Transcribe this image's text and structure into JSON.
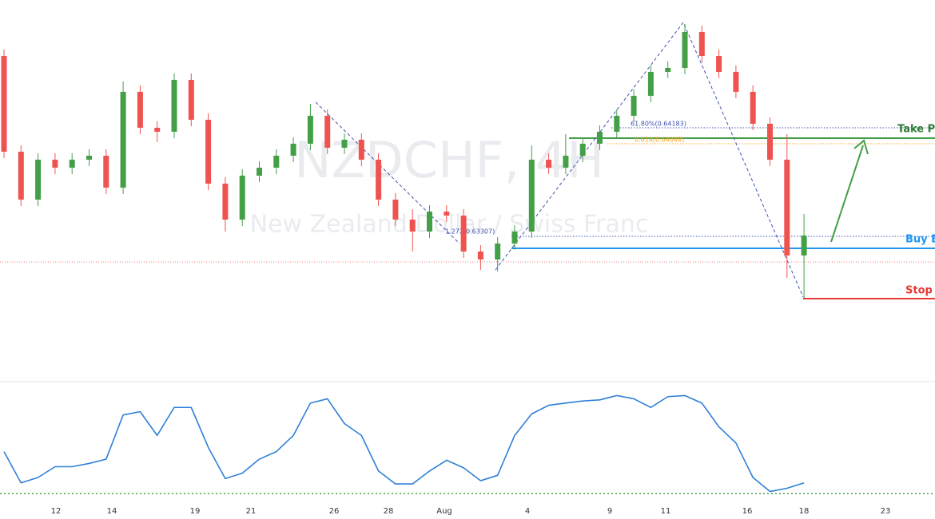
{
  "chart_data": [
    {
      "type": "candlestick",
      "watermark": "NZDCHF, 4H",
      "watermark_subtitle": "New Zealand Dollar / Swiss Franc",
      "up_color": "#43a047",
      "down_color": "#ef5350",
      "ylim": [
        0.6227,
        0.6509
      ],
      "open": [
        0.6467,
        0.6395,
        0.6359,
        0.6389,
        0.6383,
        0.6389,
        0.6392,
        0.6368,
        0.644,
        0.6413,
        0.641,
        0.6449,
        0.6419,
        0.6371,
        0.6344,
        0.6377,
        0.6383,
        0.6392,
        0.6401,
        0.6422,
        0.6398,
        0.6404,
        0.6389,
        0.6359,
        0.6344,
        0.6335,
        0.635,
        0.6347,
        0.632,
        0.6314,
        0.6326,
        0.6335,
        0.6389,
        0.6383,
        0.6392,
        0.6401,
        0.641,
        0.6422,
        0.6437,
        0.6455,
        0.6458,
        0.6485,
        0.6467,
        0.6455,
        0.644,
        0.6416,
        0.6389,
        0.6317
      ],
      "high": [
        0.64718,
        0.63998,
        0.63938,
        0.63938,
        0.63938,
        0.63968,
        0.63968,
        0.64478,
        0.64448,
        0.64178,
        0.64538,
        0.64538,
        0.64238,
        0.63758,
        0.63818,
        0.63878,
        0.63968,
        0.64058,
        0.6431,
        0.64268,
        0.64088,
        0.64088,
        0.63938,
        0.63638,
        0.63518,
        0.63548,
        0.63548,
        0.63518,
        0.63248,
        0.63308,
        0.63398,
        0.63998,
        0.63938,
        0.64082,
        0.64058,
        0.64148,
        0.64268,
        0.64418,
        0.64598,
        0.64628,
        0.6491,
        0.64898,
        0.64718,
        0.64598,
        0.64448,
        0.64208,
        0.64082,
        0.63482
      ],
      "low": [
        0.63902,
        0.63542,
        0.63542,
        0.63782,
        0.63782,
        0.63842,
        0.63632,
        0.63632,
        0.64082,
        0.64022,
        0.64052,
        0.64142,
        0.63662,
        0.6335,
        0.63392,
        0.63722,
        0.63782,
        0.63872,
        0.63962,
        0.63932,
        0.63932,
        0.63842,
        0.63542,
        0.63392,
        0.632,
        0.63302,
        0.63422,
        0.63152,
        0.63062,
        0.6305,
        0.63212,
        0.63302,
        0.63782,
        0.63782,
        0.63872,
        0.63962,
        0.64052,
        0.64172,
        0.64322,
        0.64502,
        0.64532,
        0.64622,
        0.64502,
        0.64352,
        0.64112,
        0.63842,
        0.63002,
        0.62852
      ],
      "close": [
        0.6395,
        0.6359,
        0.6389,
        0.6383,
        0.6389,
        0.6392,
        0.6368,
        0.644,
        0.6413,
        0.641,
        0.6449,
        0.6419,
        0.6371,
        0.6344,
        0.6377,
        0.6383,
        0.6392,
        0.6401,
        0.6422,
        0.6398,
        0.6404,
        0.6389,
        0.6359,
        0.6344,
        0.6335,
        0.635,
        0.6347,
        0.632,
        0.6314,
        0.6326,
        0.6335,
        0.6389,
        0.6383,
        0.6392,
        0.6401,
        0.641,
        0.6422,
        0.6437,
        0.6455,
        0.6458,
        0.6485,
        0.6467,
        0.6455,
        0.644,
        0.6416,
        0.6389,
        0.6317,
        0.6332
      ],
      "time_labels": [
        "12",
        "14",
        "19",
        "21",
        "26",
        "28",
        "Aug",
        "4",
        "9",
        "11",
        "16",
        "18",
        "23"
      ],
      "annotations": {
        "take_profit": "Take Pr",
        "buy_entry": "Buy E",
        "stop_loss": "Stop L",
        "fib_a": "61.80%(0.64183)",
        "fib_b": "0.618(0.64048)",
        "fib_c": "1.272(0.63307)"
      }
    },
    {
      "type": "line",
      "color": "#2f80d8",
      "ylim": [
        0,
        100
      ],
      "level": 5,
      "level_color": "#43a047",
      "values": [
        44,
        15,
        20,
        30,
        30,
        33,
        37,
        78,
        81,
        59,
        85,
        85,
        48,
        19,
        24,
        37,
        44,
        59,
        89,
        93,
        70,
        59,
        26,
        14,
        14,
        26,
        36,
        29,
        17,
        22,
        59,
        79,
        87,
        89,
        91,
        92,
        96,
        93,
        85,
        95,
        96,
        89,
        67,
        52,
        20,
        7,
        10,
        15
      ]
    }
  ]
}
